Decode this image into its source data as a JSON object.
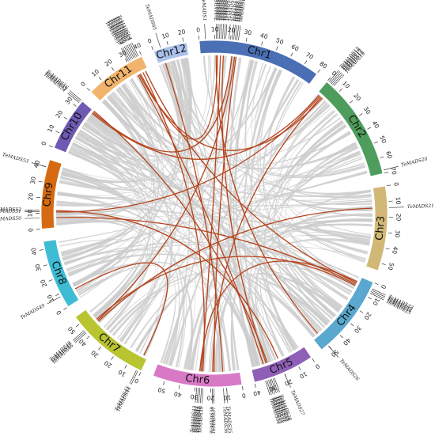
{
  "figure": {
    "chromosomes": [
      {
        "name": "Chr1",
        "length": 80,
        "color": "#4a6fb5",
        "ticks": [
          0,
          10,
          20,
          30,
          40,
          50,
          60,
          70,
          80
        ]
      },
      {
        "name": "Chr2",
        "length": 70,
        "color": "#4f9d5c",
        "ticks": [
          0,
          10,
          20,
          30,
          40,
          50,
          60,
          70
        ]
      },
      {
        "name": "Chr3",
        "length": 55,
        "color": "#d2b877",
        "ticks": [
          0,
          10,
          20,
          30,
          40,
          50
        ]
      },
      {
        "name": "Chr4",
        "length": 55,
        "color": "#5aa8cf",
        "ticks": [
          0,
          10,
          20,
          30,
          40,
          50
        ]
      },
      {
        "name": "Chr5",
        "length": 40,
        "color": "#8f5fb8",
        "ticks": [
          0,
          10,
          20,
          30,
          40
        ]
      },
      {
        "name": "Chr6",
        "length": 58,
        "color": "#d879c6",
        "ticks": [
          0,
          10,
          20,
          30,
          40,
          50
        ]
      },
      {
        "name": "Chr7",
        "length": 55,
        "color": "#b9c431",
        "ticks": [
          0,
          10,
          20,
          30,
          40,
          50
        ]
      },
      {
        "name": "Chr8",
        "length": 45,
        "color": "#3dbcd4",
        "ticks": [
          0,
          10,
          20,
          30,
          40
        ]
      },
      {
        "name": "Chr9",
        "length": 45,
        "color": "#d66a12",
        "ticks": [
          0,
          10,
          20,
          30,
          40
        ]
      },
      {
        "name": "Chr10",
        "length": 35,
        "color": "#6f5ab3",
        "ticks": [
          0,
          10,
          20,
          30
        ]
      },
      {
        "name": "Chr11",
        "length": 40,
        "color": "#f2b46c",
        "ticks": [
          0,
          10,
          20,
          30,
          40
        ]
      },
      {
        "name": "Chr12",
        "length": 22,
        "color": "#a9c2ea",
        "ticks": [
          0,
          10,
          20
        ]
      }
    ],
    "genes": [
      {
        "chr": "Chr1",
        "pos": 4,
        "name": "TeMADS1"
      },
      {
        "chr": "Chr1",
        "pos": 11,
        "name": "TeMADS2"
      },
      {
        "chr": "Chr1",
        "pos": 12,
        "name": "TeMADS3"
      },
      {
        "chr": "Chr1",
        "pos": 13,
        "name": "TeMADS4"
      },
      {
        "chr": "Chr1",
        "pos": 14,
        "name": "TeMADS5"
      },
      {
        "chr": "Chr1",
        "pos": 15,
        "name": "TeMADS6"
      },
      {
        "chr": "Chr1",
        "pos": 16,
        "name": "TeMADS7"
      },
      {
        "chr": "Chr1",
        "pos": 17,
        "name": "TeMADS8"
      },
      {
        "chr": "Chr1",
        "pos": 19,
        "name": "TeMADS9"
      },
      {
        "chr": "Chr1",
        "pos": 21,
        "name": "TeMADS10"
      },
      {
        "chr": "Chr1",
        "pos": 22,
        "name": "TeMADS11"
      },
      {
        "chr": "Chr1",
        "pos": 23,
        "name": "TeMADS12"
      },
      {
        "chr": "Chr1",
        "pos": 24,
        "name": "TeMADS13"
      },
      {
        "chr": "Chr1",
        "pos": 25,
        "name": "TeMADS14"
      },
      {
        "chr": "Chr2",
        "pos": 1,
        "name": "TeMADS15"
      },
      {
        "chr": "Chr2",
        "pos": 2,
        "name": "TeMADS16"
      },
      {
        "chr": "Chr2",
        "pos": 3,
        "name": "TeMADS17"
      },
      {
        "chr": "Chr2",
        "pos": 4,
        "name": "TeMADS18"
      },
      {
        "chr": "Chr2",
        "pos": 5,
        "name": "TeMADS19"
      },
      {
        "chr": "Chr2",
        "pos": 68,
        "name": "TeMADS20"
      },
      {
        "chr": "Chr3",
        "pos": 14,
        "name": "TeMADS21"
      },
      {
        "chr": "Chr4",
        "pos": 4,
        "name": "TeMADS22"
      },
      {
        "chr": "Chr4",
        "pos": 5,
        "name": "TeMADS23"
      },
      {
        "chr": "Chr4",
        "pos": 6,
        "name": "TeMADS24"
      },
      {
        "chr": "Chr4",
        "pos": 7,
        "name": "TeMADS25"
      },
      {
        "chr": "Chr4",
        "pos": 50,
        "name": "TeMADS26"
      },
      {
        "chr": "Chr5",
        "pos": 20,
        "name": "TeMADS27"
      },
      {
        "chr": "Chr5",
        "pos": 27,
        "name": "TeMADS28"
      },
      {
        "chr": "Chr5",
        "pos": 28,
        "name": "TeMADS29"
      },
      {
        "chr": "Chr5",
        "pos": 29,
        "name": "TeMADS30"
      },
      {
        "chr": "Chr5",
        "pos": 30,
        "name": "TeMADS31"
      },
      {
        "chr": "Chr5",
        "pos": 31,
        "name": "TeMADS32"
      },
      {
        "chr": "Chr5",
        "pos": 32,
        "name": "TeMADS33"
      },
      {
        "chr": "Chr5",
        "pos": 33,
        "name": "TeMADS34"
      },
      {
        "chr": "Chr6",
        "pos": 10,
        "name": "TeMADS35"
      },
      {
        "chr": "Chr6",
        "pos": 12,
        "name": "TeMADS36"
      },
      {
        "chr": "Chr6",
        "pos": 18,
        "name": "TeMADS37"
      },
      {
        "chr": "Chr6",
        "pos": 19,
        "name": "TeMADS38"
      },
      {
        "chr": "Chr6",
        "pos": 25,
        "name": "TeMADS39"
      },
      {
        "chr": "Chr6",
        "pos": 26,
        "name": "TeMADS40"
      },
      {
        "chr": "Chr6",
        "pos": 27,
        "name": "TeMADS41"
      },
      {
        "chr": "Chr6",
        "pos": 28,
        "name": "TeMADS42"
      },
      {
        "chr": "Chr6",
        "pos": 29,
        "name": "TeMADS43"
      },
      {
        "chr": "Chr7",
        "pos": 2,
        "name": "TeMADS44"
      },
      {
        "chr": "Chr7",
        "pos": 3,
        "name": "TeMADS45"
      },
      {
        "chr": "Chr7",
        "pos": 43,
        "name": "TeMADS46"
      },
      {
        "chr": "Chr7",
        "pos": 44,
        "name": "TeMADS47"
      },
      {
        "chr": "Chr7",
        "pos": 45,
        "name": "TeMADS48"
      },
      {
        "chr": "Chr8",
        "pos": 8,
        "name": "TeMADS49"
      },
      {
        "chr": "Chr9",
        "pos": 7,
        "name": "TeMADS50"
      },
      {
        "chr": "Chr9",
        "pos": 11,
        "name": "TeMADS51"
      },
      {
        "chr": "Chr9",
        "pos": 12,
        "name": "TeMADS52"
      },
      {
        "chr": "Chr9",
        "pos": 40,
        "name": "TeMADS53"
      },
      {
        "chr": "Chr10",
        "pos": 33,
        "name": "TeMADS54"
      },
      {
        "chr": "Chr10",
        "pos": 34,
        "name": "TeMADS55"
      },
      {
        "chr": "Chr10",
        "pos": 35,
        "name": "TeMADS56"
      },
      {
        "chr": "Chr11",
        "pos": 31,
        "name": "TeMADS57"
      },
      {
        "chr": "Chr11",
        "pos": 32,
        "name": "TeMADS58"
      },
      {
        "chr": "Chr11",
        "pos": 33,
        "name": "TeMADS59"
      },
      {
        "chr": "Chr11",
        "pos": 34,
        "name": "TeMADS60"
      },
      {
        "chr": "Chr11",
        "pos": 35,
        "name": "TeMADS61"
      },
      {
        "chr": "Chr11",
        "pos": 36,
        "name": "TeMADS62"
      },
      {
        "chr": "Chr11",
        "pos": 37,
        "name": "TeMADS63"
      },
      {
        "chr": "Chr11",
        "pos": 38,
        "name": "TeMADS64"
      },
      {
        "chr": "Chr12",
        "pos": 5,
        "name": "TeMADS65"
      }
    ],
    "segmental_links": [
      {
        "a": [
          "Chr1",
          12
        ],
        "b": [
          "Chr11",
          34
        ]
      },
      {
        "a": [
          "Chr1",
          14
        ],
        "b": [
          "Chr6",
          27
        ]
      },
      {
        "a": [
          "Chr1",
          16
        ],
        "b": [
          "Chr5",
          29
        ]
      },
      {
        "a": [
          "Chr1",
          22
        ],
        "b": [
          "Chr10",
          34
        ]
      },
      {
        "a": [
          "Chr1",
          24
        ],
        "b": [
          "Chr7",
          44
        ]
      },
      {
        "a": [
          "Chr2",
          3
        ],
        "b": [
          "Chr9",
          11
        ]
      },
      {
        "a": [
          "Chr2",
          4
        ],
        "b": [
          "Chr6",
          19
        ]
      },
      {
        "a": [
          "Chr2",
          2
        ],
        "b": [
          "Chr10",
          33
        ]
      },
      {
        "a": [
          "Chr11",
          32
        ],
        "b": [
          "Chr5",
          31
        ]
      },
      {
        "a": [
          "Chr11",
          36
        ],
        "b": [
          "Chr6",
          26
        ]
      },
      {
        "a": [
          "Chr11",
          38
        ],
        "b": [
          "Chr4",
          5
        ]
      },
      {
        "a": [
          "Chr12",
          5
        ],
        "b": [
          "Chr6",
          12
        ]
      },
      {
        "a": [
          "Chr10",
          35
        ],
        "b": [
          "Chr5",
          28
        ]
      },
      {
        "a": [
          "Chr9",
          12
        ],
        "b": [
          "Chr5",
          20
        ]
      },
      {
        "a": [
          "Chr9",
          7
        ],
        "b": [
          "Chr4",
          6
        ]
      },
      {
        "a": [
          "Chr8",
          8
        ],
        "b": [
          "Chr7",
          3
        ]
      },
      {
        "a": [
          "Chr7",
          45
        ],
        "b": [
          "Chr4",
          7
        ]
      },
      {
        "a": [
          "Chr6",
          28
        ],
        "b": [
          "Chr4",
          4
        ]
      },
      {
        "a": [
          "Chr3",
          14
        ],
        "b": [
          "Chr7",
          43
        ]
      },
      {
        "a": [
          "Chr1",
          11
        ],
        "b": [
          "Chr4",
          50
        ]
      },
      {
        "a": [
          "Chr11",
          33
        ],
        "b": [
          "Chr2",
          5
        ]
      },
      {
        "a": [
          "Chr6",
          18
        ],
        "b": [
          "Chr1",
          25
        ]
      }
    ],
    "colors": {
      "background_link": "#cccccc",
      "highlight_link": "#b5441c"
    }
  }
}
